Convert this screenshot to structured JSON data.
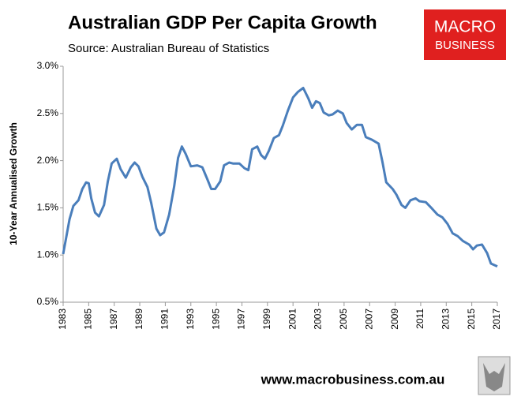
{
  "chart_data": {
    "type": "line",
    "title": "Australian GDP Per Capita Growth",
    "subtitle": "Source: Australian Bureau of Statistics",
    "logo": {
      "line1": "MACRO",
      "line2": "BUSINESS"
    },
    "y_label": "10-Year Annualised Growth",
    "footer": "www.macrobusiness.com.au",
    "color": "#4a7ebb",
    "xlim": [
      1983,
      2017
    ],
    "xticks": [
      1983,
      1985,
      1987,
      1989,
      1991,
      1993,
      1995,
      1997,
      1999,
      2001,
      2003,
      2005,
      2007,
      2009,
      2011,
      2013,
      2015,
      2017
    ],
    "ylim": [
      0.5,
      3.0
    ],
    "yticks": [
      {
        "value": 0.5,
        "label": "0.5%"
      },
      {
        "value": 1.0,
        "label": "1.0%"
      },
      {
        "value": 1.5,
        "label": "1.5%"
      },
      {
        "value": 2.0,
        "label": "2.0%"
      },
      {
        "value": 2.5,
        "label": "2.5%"
      },
      {
        "value": 3.0,
        "label": "3.0%"
      }
    ],
    "grid": false,
    "x": [
      1983.0,
      1983.5,
      1983.8,
      1984.2,
      1984.5,
      1984.8,
      1985.0,
      1985.2,
      1985.5,
      1985.8,
      1986.2,
      1986.5,
      1986.8,
      1987.2,
      1987.5,
      1987.9,
      1988.3,
      1988.6,
      1988.9,
      1989.2,
      1989.6,
      1989.9,
      1990.3,
      1990.6,
      1990.9,
      1991.3,
      1991.7,
      1992.0,
      1992.3,
      1992.6,
      1993.0,
      1993.5,
      1993.9,
      1994.3,
      1994.6,
      1994.9,
      1995.3,
      1995.6,
      1996.0,
      1996.3,
      1996.8,
      1997.2,
      1997.5,
      1997.8,
      1998.2,
      1998.5,
      1998.8,
      1999.1,
      1999.5,
      1999.9,
      2000.2,
      2000.6,
      2001.0,
      2001.4,
      2001.8,
      2002.2,
      2002.5,
      2002.8,
      2003.1,
      2003.4,
      2003.8,
      2004.1,
      2004.5,
      2004.9,
      2005.2,
      2005.6,
      2006.0,
      2006.4,
      2006.7,
      2007.2,
      2007.7,
      2008.0,
      2008.3,
      2008.8,
      2009.1,
      2009.5,
      2009.8,
      2010.2,
      2010.6,
      2010.9,
      2011.4,
      2011.9,
      2012.3,
      2012.7,
      2013.1,
      2013.5,
      2013.9,
      2014.3,
      2014.8,
      2015.1,
      2015.4,
      2015.8,
      2016.2,
      2016.5,
      2017.0
    ],
    "values": [
      1.01,
      1.38,
      1.52,
      1.58,
      1.7,
      1.77,
      1.76,
      1.6,
      1.45,
      1.41,
      1.53,
      1.78,
      1.97,
      2.02,
      1.91,
      1.82,
      1.93,
      1.98,
      1.94,
      1.83,
      1.72,
      1.55,
      1.28,
      1.21,
      1.24,
      1.43,
      1.73,
      2.03,
      2.15,
      2.07,
      1.94,
      1.95,
      1.93,
      1.8,
      1.7,
      1.7,
      1.78,
      1.95,
      1.98,
      1.97,
      1.97,
      1.92,
      1.9,
      2.12,
      2.15,
      2.06,
      2.02,
      2.1,
      2.24,
      2.27,
      2.37,
      2.53,
      2.67,
      2.73,
      2.77,
      2.66,
      2.56,
      2.63,
      2.61,
      2.51,
      2.48,
      2.49,
      2.53,
      2.5,
      2.4,
      2.33,
      2.38,
      2.38,
      2.25,
      2.22,
      2.18,
      1.99,
      1.77,
      1.7,
      1.64,
      1.53,
      1.5,
      1.58,
      1.6,
      1.57,
      1.56,
      1.49,
      1.43,
      1.4,
      1.33,
      1.23,
      1.2,
      1.15,
      1.11,
      1.06,
      1.1,
      1.11,
      1.02,
      0.91,
      0.88
    ]
  }
}
